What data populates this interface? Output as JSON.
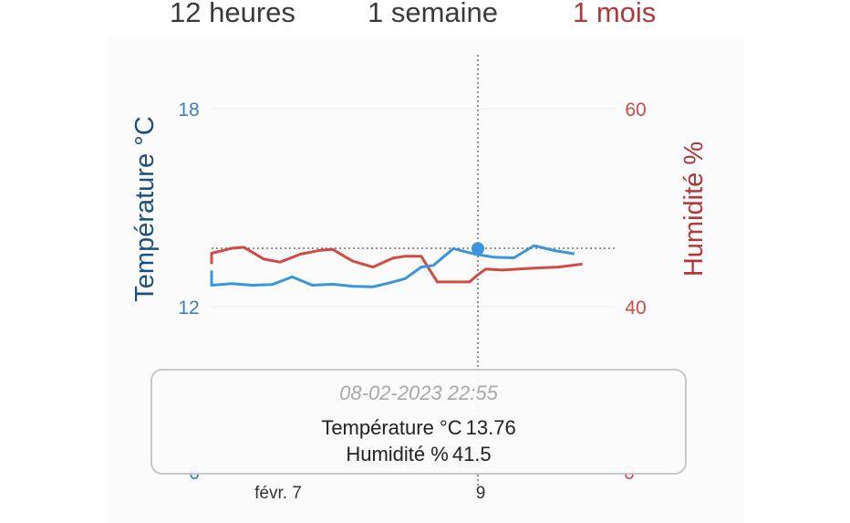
{
  "tabs": [
    {
      "label": "12 heures",
      "active": false
    },
    {
      "label": "1 semaine",
      "active": false
    },
    {
      "label": "1 mois",
      "active": true
    }
  ],
  "colors": {
    "temperature": "#3b95dd",
    "humidity": "#d14a45",
    "temp_axis_title": "#1c4f80",
    "humidity_axis_title": "#b3363a",
    "active_tab": "#b3363a"
  },
  "tooltip": {
    "date": "08-02-2023 22:55",
    "temperature_label": "Température °C",
    "temperature_value": "13.76",
    "humidity_label": "Humidité %",
    "humidity_value": "41.5"
  },
  "chart_data": {
    "type": "line",
    "left_axis": {
      "title": "Température °C",
      "ticks": [
        "18",
        "12",
        "6"
      ],
      "range": [
        6,
        18
      ]
    },
    "right_axis": {
      "title": "Humidité %",
      "ticks": [
        "60",
        "40",
        "0"
      ],
      "range": [
        0,
        60
      ]
    },
    "x_ticks": [
      "févr. 7",
      "9"
    ],
    "crosshair_x": 0.5,
    "series": [
      {
        "name": "Température °C",
        "axis": "left",
        "points": [
          [
            0,
            13.1
          ],
          [
            0,
            12.65
          ],
          [
            0.05,
            12.7
          ],
          [
            0.1,
            12.65
          ],
          [
            0.15,
            12.67
          ],
          [
            0.2,
            12.9
          ],
          [
            0.25,
            12.65
          ],
          [
            0.3,
            12.68
          ],
          [
            0.35,
            12.62
          ],
          [
            0.4,
            12.6
          ],
          [
            0.45,
            12.75
          ],
          [
            0.48,
            12.85
          ],
          [
            0.52,
            13.2
          ],
          [
            0.55,
            13.25
          ],
          [
            0.6,
            13.76
          ],
          [
            0.65,
            13.6
          ],
          [
            0.7,
            13.5
          ],
          [
            0.75,
            13.48
          ],
          [
            0.8,
            13.85
          ],
          [
            0.85,
            13.7
          ],
          [
            0.9,
            13.6
          ]
        ]
      },
      {
        "name": "Humidité %",
        "axis": "right",
        "points": [
          [
            0,
            44.3
          ],
          [
            0,
            45.4
          ],
          [
            0.05,
            45.9
          ],
          [
            0.08,
            46
          ],
          [
            0.13,
            44.8
          ],
          [
            0.17,
            44.5
          ],
          [
            0.22,
            45.3
          ],
          [
            0.27,
            45.7
          ],
          [
            0.3,
            45.8
          ],
          [
            0.35,
            44.6
          ],
          [
            0.4,
            44.0
          ],
          [
            0.45,
            44.9
          ],
          [
            0.48,
            45.1
          ],
          [
            0.52,
            45.1
          ],
          [
            0.56,
            42.5
          ],
          [
            0.6,
            42.5
          ],
          [
            0.64,
            42.5
          ],
          [
            0.66,
            43.2
          ],
          [
            0.68,
            43.8
          ],
          [
            0.72,
            43.7
          ],
          [
            0.8,
            43.9
          ],
          [
            0.86,
            44.0
          ],
          [
            0.92,
            44.3
          ]
        ]
      }
    ]
  }
}
